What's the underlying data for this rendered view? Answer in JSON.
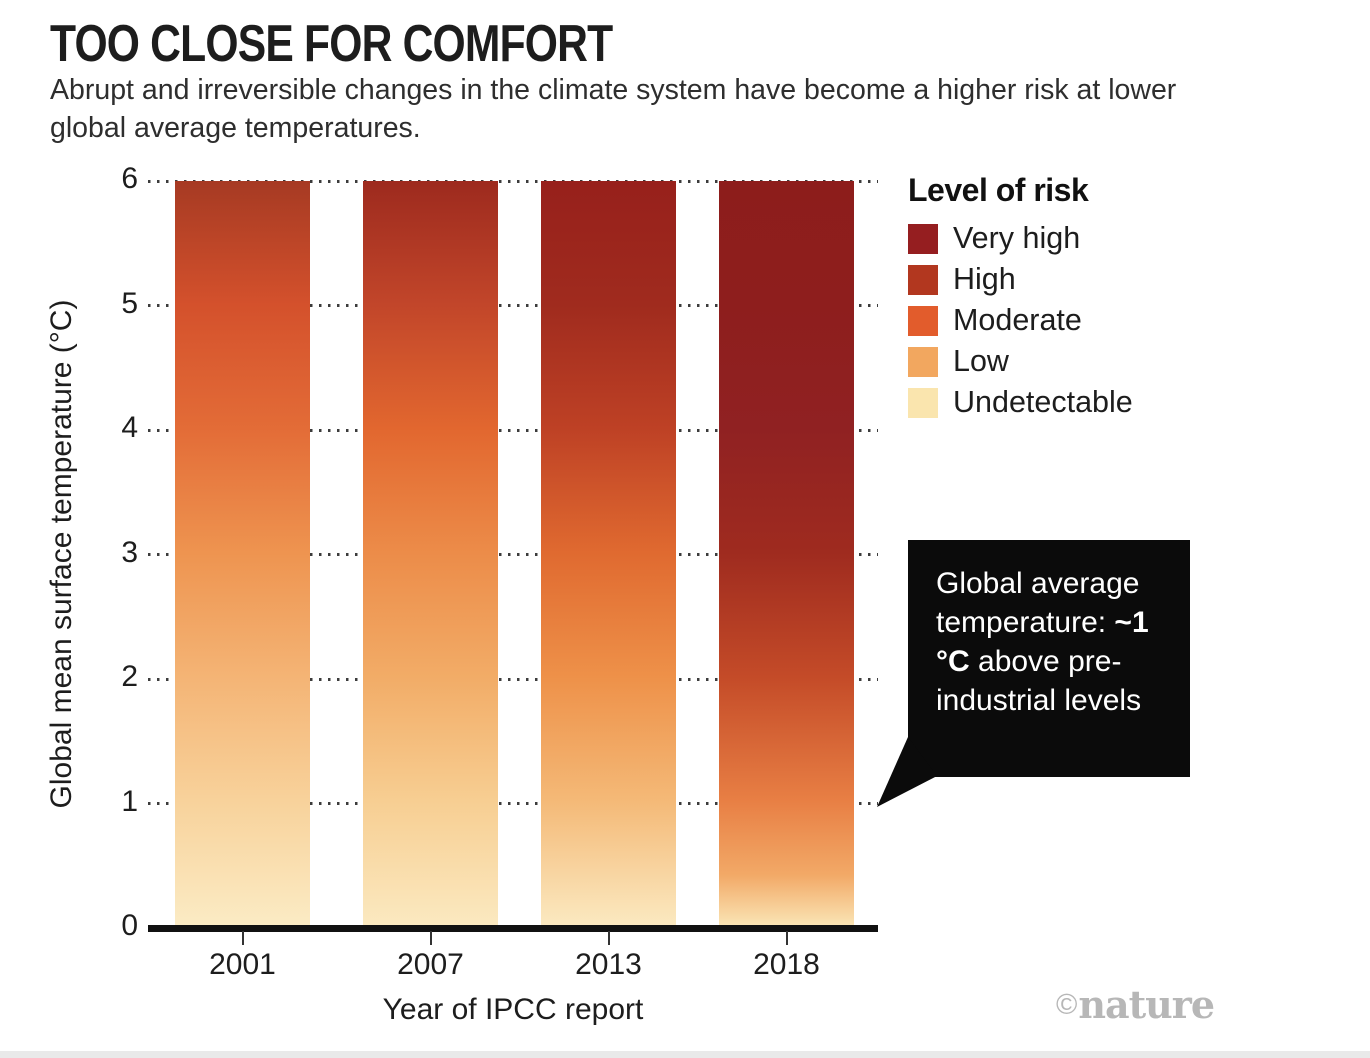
{
  "header": {
    "title": "TOO CLOSE FOR COMFORT",
    "subtitle": "Abrupt and irreversible changes in the climate system have become a higher risk at lower global average temperatures."
  },
  "chart_data": {
    "type": "bar",
    "title": "TOO CLOSE FOR COMFORT",
    "subtitle": "Abrupt and irreversible changes in the climate system have become a higher risk at lower global average temperatures.",
    "categories": [
      "2001",
      "2007",
      "2013",
      "2018"
    ],
    "xlabel": "Year of IPCC report",
    "ylabel": "Global mean surface temperature (°C)",
    "ylim": [
      0,
      6
    ],
    "yticks": [
      0,
      1,
      2,
      3,
      4,
      5,
      6
    ],
    "grid": "dotted horizontal gridlines at each integer tick",
    "legend_position": "right",
    "bar_encoding": "each bar spans 0-6 °C; vertical color gradient encodes level of risk of abrupt and irreversible change at that temperature",
    "series": [
      {
        "year": "2001",
        "stops": [
          {
            "t": 6,
            "c": "#A63A23"
          },
          {
            "t": 5,
            "c": "#D4512C"
          },
          {
            "t": 4,
            "c": "#E36C37"
          },
          {
            "t": 3,
            "c": "#EE9450"
          },
          {
            "t": 2,
            "c": "#F4B475"
          },
          {
            "t": 1,
            "c": "#F8D29B"
          },
          {
            "t": 0,
            "c": "#FBEBC4"
          }
        ]
      },
      {
        "year": "2007",
        "stops": [
          {
            "t": 6,
            "c": "#9D2A1E"
          },
          {
            "t": 5,
            "c": "#C2462A"
          },
          {
            "t": 4,
            "c": "#E2672F"
          },
          {
            "t": 3,
            "c": "#EC8C49"
          },
          {
            "t": 2,
            "c": "#F2AC67"
          },
          {
            "t": 1,
            "c": "#F7CE92"
          },
          {
            "t": 0,
            "c": "#FBE9C0"
          }
        ]
      },
      {
        "year": "2013",
        "stops": [
          {
            "t": 6,
            "c": "#97201B"
          },
          {
            "t": 5,
            "c": "#A02B1E"
          },
          {
            "t": 4,
            "c": "#BE4125"
          },
          {
            "t": 3,
            "c": "#E06A30"
          },
          {
            "t": 2,
            "c": "#EE9149"
          },
          {
            "t": 1,
            "c": "#F4B977"
          },
          {
            "t": 0,
            "c": "#FBE9C0"
          }
        ]
      },
      {
        "year": "2018",
        "stops": [
          {
            "t": 6,
            "c": "#8D1D1B"
          },
          {
            "t": 5,
            "c": "#8E1E1D"
          },
          {
            "t": 4,
            "c": "#902122"
          },
          {
            "t": 3,
            "c": "#9F2B1F"
          },
          {
            "t": 2,
            "c": "#C44B28"
          },
          {
            "t": 1,
            "c": "#E87F44"
          },
          {
            "t": 0.4,
            "c": "#F2A967"
          },
          {
            "t": 0,
            "c": "#FAE4B4"
          }
        ]
      }
    ],
    "annotation": "Global average temperature: ~1 °C above pre-industrial levels"
  },
  "legend": {
    "title": "Level of risk",
    "items": [
      {
        "label": "Very high",
        "color": "#951E20"
      },
      {
        "label": "High",
        "color": "#B2371F"
      },
      {
        "label": "Moderate",
        "color": "#E25C2C"
      },
      {
        "label": "Low",
        "color": "#F2A75F"
      },
      {
        "label": "Undetectable",
        "color": "#FAE5AE"
      }
    ]
  },
  "callout": {
    "text_before": "Global average temperature: ",
    "text_bold": "~1 °C",
    "text_after": " above pre-industrial levels"
  },
  "footer": {
    "symbol": "©",
    "name": "nature"
  }
}
